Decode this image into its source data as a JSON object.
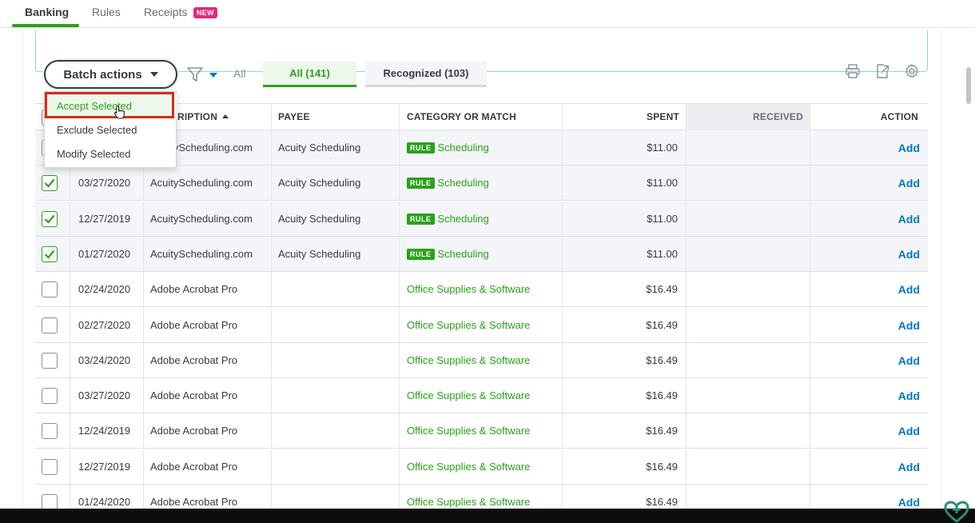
{
  "top_tabs": [
    {
      "label": "Banking",
      "active": true
    },
    {
      "label": "Rules",
      "active": false
    },
    {
      "label": "Receipts",
      "active": false,
      "badge": "NEW"
    }
  ],
  "toolbar": {
    "batch_actions_label": "Batch actions",
    "all_label": "All",
    "tab_all": "All (141)",
    "tab_recognized": "Recognized (103)",
    "icons": [
      "printer-icon",
      "export-icon",
      "gear-icon"
    ]
  },
  "batch_menu": {
    "items": [
      "Accept Selected",
      "Exclude Selected",
      "Modify Selected"
    ],
    "highlighted": "Accept Selected"
  },
  "table": {
    "headers": {
      "description": "DESCRIPTION",
      "description_visible": "RIPTION",
      "payee": "PAYEE",
      "category": "CATEGORY OR MATCH",
      "spent": "SPENT",
      "received": "RECEIVED",
      "action": "ACTION"
    },
    "rule_badge": "RULE",
    "add_label": "Add",
    "rows": [
      {
        "checked": false,
        "date": "",
        "description": "AcuityScheduling.com",
        "payee": "Acuity Scheduling",
        "rule": true,
        "category": "Scheduling",
        "spent": "$11.00",
        "received": ""
      },
      {
        "checked": true,
        "date": "03/27/2020",
        "description": "AcuityScheduling.com",
        "payee": "Acuity Scheduling",
        "rule": true,
        "category": "Scheduling",
        "spent": "$11.00",
        "received": ""
      },
      {
        "checked": true,
        "date": "12/27/2019",
        "description": "AcuityScheduling.com",
        "payee": "Acuity Scheduling",
        "rule": true,
        "category": "Scheduling",
        "spent": "$11.00",
        "received": ""
      },
      {
        "checked": true,
        "date": "01/27/2020",
        "description": "AcuityScheduling.com",
        "payee": "Acuity Scheduling",
        "rule": true,
        "category": "Scheduling",
        "spent": "$11.00",
        "received": ""
      },
      {
        "checked": false,
        "date": "02/24/2020",
        "description": "Adobe Acrobat Pro",
        "payee": "",
        "rule": false,
        "category": "Office Supplies & Software",
        "spent": "$16.49",
        "received": ""
      },
      {
        "checked": false,
        "date": "02/27/2020",
        "description": "Adobe Acrobat Pro",
        "payee": "",
        "rule": false,
        "category": "Office Supplies & Software",
        "spent": "$16.49",
        "received": ""
      },
      {
        "checked": false,
        "date": "03/24/2020",
        "description": "Adobe Acrobat Pro",
        "payee": "",
        "rule": false,
        "category": "Office Supplies & Software",
        "spent": "$16.49",
        "received": ""
      },
      {
        "checked": false,
        "date": "03/27/2020",
        "description": "Adobe Acrobat Pro",
        "payee": "",
        "rule": false,
        "category": "Office Supplies & Software",
        "spent": "$16.49",
        "received": ""
      },
      {
        "checked": false,
        "date": "12/24/2019",
        "description": "Adobe Acrobat Pro",
        "payee": "",
        "rule": false,
        "category": "Office Supplies & Software",
        "spent": "$16.49",
        "received": ""
      },
      {
        "checked": false,
        "date": "12/27/2019",
        "description": "Adobe Acrobat Pro",
        "payee": "",
        "rule": false,
        "category": "Office Supplies & Software",
        "spent": "$16.49",
        "received": ""
      },
      {
        "checked": false,
        "date": "01/24/2020",
        "description": "Adobe Acrobat Pro",
        "payee": "",
        "rule": false,
        "category": "Office Supplies & Software",
        "spent": "$16.49",
        "received": ""
      }
    ]
  },
  "colors": {
    "brand_green": "#2ca01c",
    "link_blue": "#0077c5",
    "highlight_red": "#d52b1e",
    "new_badge": "#e3287a"
  }
}
